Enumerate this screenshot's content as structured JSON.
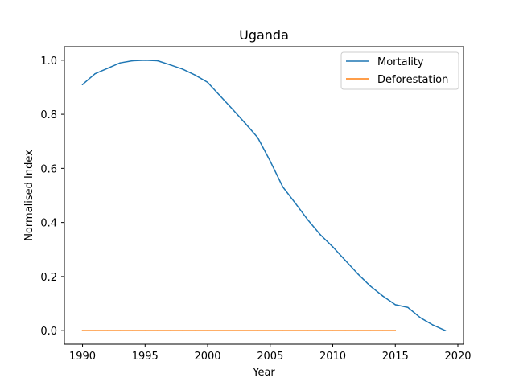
{
  "chart_data": {
    "type": "line",
    "title": "Uganda",
    "xlabel": "Year",
    "ylabel": "Normalised Index",
    "xlim": [
      1988.55,
      2020.45
    ],
    "ylim": [
      -0.05,
      1.05
    ],
    "xticks": [
      1990,
      1995,
      2000,
      2005,
      2010,
      2015,
      2020
    ],
    "yticks": [
      0.0,
      0.2,
      0.4,
      0.6,
      0.8,
      1.0
    ],
    "ytick_labels": [
      "0.0",
      "0.2",
      "0.4",
      "0.6",
      "0.8",
      "1.0"
    ],
    "grid": false,
    "legend_position": "top-right",
    "series": [
      {
        "name": "Mortality",
        "color": "#1f77b4",
        "x": [
          1990,
          1991,
          1992,
          1993,
          1994,
          1995,
          1996,
          1997,
          1998,
          1999,
          2000,
          2001,
          2002,
          2003,
          2004,
          2005,
          2006,
          2007,
          2008,
          2009,
          2010,
          2011,
          2012,
          2013,
          2014,
          2015,
          2016,
          2017,
          2018,
          2019
        ],
        "y": [
          0.91,
          0.95,
          0.97,
          0.99,
          0.998,
          1.0,
          0.998,
          0.983,
          0.967,
          0.945,
          0.918,
          0.868,
          0.818,
          0.767,
          0.714,
          0.627,
          0.532,
          0.472,
          0.41,
          0.355,
          0.31,
          0.26,
          0.21,
          0.165,
          0.128,
          0.096,
          0.086,
          0.048,
          0.021,
          0.0
        ]
      },
      {
        "name": "Deforestation",
        "color": "#ff7f0e",
        "x": [
          1990,
          1991,
          1992,
          1993,
          1994,
          1995,
          1996,
          1997,
          1998,
          1999,
          2000,
          2001,
          2002,
          2003,
          2004,
          2005,
          2006,
          2007,
          2008,
          2009,
          2010,
          2011,
          2012,
          2013,
          2014,
          2015
        ],
        "y": [
          0,
          0,
          0,
          0,
          0,
          0,
          0,
          0,
          0,
          0,
          0,
          0,
          0,
          0,
          0,
          0,
          0,
          0,
          0,
          0,
          0,
          0,
          0,
          0,
          0,
          0
        ]
      }
    ]
  }
}
